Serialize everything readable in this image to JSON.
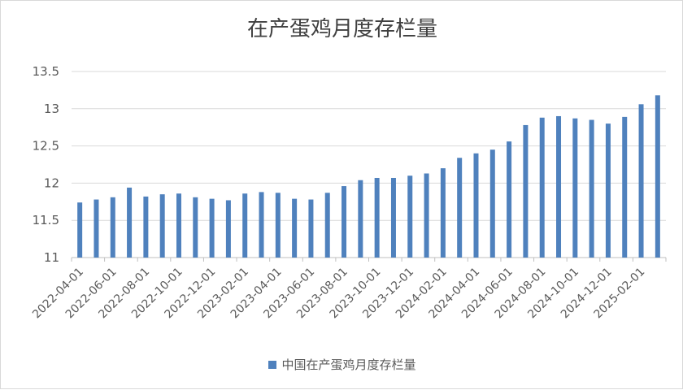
{
  "chart_data": {
    "type": "bar",
    "title": "在产蛋鸡月度存栏量",
    "xlabel": "",
    "ylabel": "",
    "ylim": [
      11,
      13.5
    ],
    "yticks": [
      "13.5",
      "13",
      "12.5",
      "12",
      "11.5",
      "11"
    ],
    "xtick_labels": [
      "2022-04-01",
      "2022-06-01",
      "2022-08-01",
      "2022-10-01",
      "2022-12-01",
      "2023-02-01",
      "2023-04-01",
      "2023-06-01",
      "2023-08-01",
      "2023-10-01",
      "2023-12-01",
      "2024-02-01",
      "2024-04-01",
      "2024-06-01",
      "2024-08-01",
      "2024-10-01",
      "2024-12-01",
      "2025-02-01"
    ],
    "categories": [
      "2022-04-01",
      "2022-05-01",
      "2022-06-01",
      "2022-07-01",
      "2022-08-01",
      "2022-09-01",
      "2022-10-01",
      "2022-11-01",
      "2022-12-01",
      "2023-01-01",
      "2023-02-01",
      "2023-03-01",
      "2023-04-01",
      "2023-05-01",
      "2023-06-01",
      "2023-07-01",
      "2023-08-01",
      "2023-09-01",
      "2023-10-01",
      "2023-11-01",
      "2023-12-01",
      "2024-01-01",
      "2024-02-01",
      "2024-03-01",
      "2024-04-01",
      "2024-05-01",
      "2024-06-01",
      "2024-07-01",
      "2024-08-01",
      "2024-09-01",
      "2024-10-01",
      "2024-11-01",
      "2024-12-01",
      "2025-01-01",
      "2025-02-01",
      "2025-03-01"
    ],
    "series": [
      {
        "name": "中国在产蛋鸡月度存栏量",
        "color": "#4f81bd",
        "values": [
          11.74,
          11.78,
          11.81,
          11.94,
          11.82,
          11.85,
          11.86,
          11.81,
          11.79,
          11.77,
          11.86,
          11.88,
          11.87,
          11.79,
          11.78,
          11.87,
          11.96,
          12.04,
          12.07,
          12.07,
          12.1,
          12.13,
          12.2,
          12.34,
          12.4,
          12.45,
          12.56,
          12.78,
          12.88,
          12.9,
          12.87,
          12.85,
          12.8,
          12.89,
          13.06,
          13.18
        ]
      }
    ],
    "legend_position": "bottom",
    "grid": true
  }
}
